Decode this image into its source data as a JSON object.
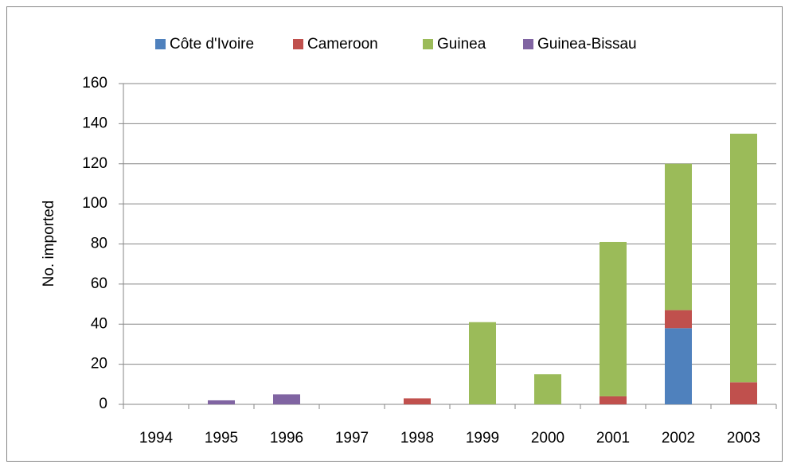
{
  "chart_data": {
    "type": "stacked_bar",
    "y_label": "No. imported",
    "categories": [
      "1994",
      "1995",
      "1996",
      "1997",
      "1998",
      "1999",
      "2000",
      "2001",
      "2002",
      "2003"
    ],
    "series": [
      {
        "name": "Côte d'Ivoire",
        "color": "#4f81bd",
        "values": [
          0,
          0,
          0,
          0,
          0,
          0,
          0,
          0,
          38,
          0
        ]
      },
      {
        "name": "Cameroon",
        "color": "#c0504d",
        "values": [
          0,
          0,
          0,
          0,
          3,
          0,
          0,
          4,
          9,
          11
        ]
      },
      {
        "name": "Guinea",
        "color": "#9bbb59",
        "values": [
          0,
          0,
          0,
          0,
          0,
          41,
          15,
          77,
          73,
          124
        ]
      },
      {
        "name": "Guinea-Bissau",
        "color": "#8064a2",
        "values": [
          0,
          2,
          5,
          0,
          0,
          0,
          0,
          0,
          0,
          0
        ]
      }
    ],
    "ylim": [
      0,
      160
    ],
    "yticks": [
      0,
      20,
      40,
      60,
      80,
      100,
      120,
      140,
      160
    ],
    "grid": true,
    "legend": "top"
  }
}
